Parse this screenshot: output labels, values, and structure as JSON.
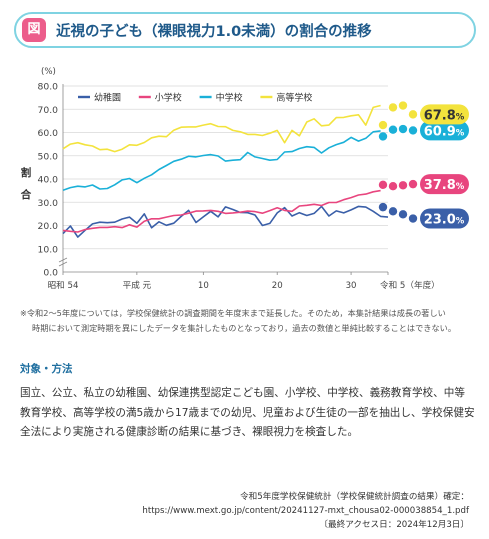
{
  "header": {
    "badge": "図",
    "title": "近視の子ども（裸眼視力1.0未満）の割合の推移"
  },
  "chart_data": {
    "type": "line",
    "unit_label": "(%)",
    "ylabel": "割合",
    "ylim": [
      0,
      80
    ],
    "yticks": [
      "0.0",
      "10.0",
      "20.0",
      "30.0",
      "40.0",
      "50.0",
      "60.0",
      "70.0",
      "80.0"
    ],
    "x_start_year": 1979,
    "x_end_year": 2023,
    "xticks": [
      {
        "year": 1979,
        "label": "昭和 54"
      },
      {
        "year": 1989,
        "label": "平成 元"
      },
      {
        "year": 1998,
        "label": "10"
      },
      {
        "year": 2008,
        "label": "20"
      },
      {
        "year": 2018,
        "label": "30"
      },
      {
        "year": 2023,
        "label": "令和 5（年度）"
      }
    ],
    "colors": {
      "幼稚園": "#3a5fa8",
      "小学校": "#e8457e",
      "中学校": "#1ab0d8",
      "高等学校": "#f3e33d"
    },
    "series": [
      {
        "name": "幼稚園",
        "values": [
          16.5,
          19.8,
          15.0,
          18.0,
          20.7,
          21.4,
          21.2,
          21.4,
          22.8,
          23.6,
          21.0,
          25.0,
          19.0,
          21.6,
          20.1,
          21.0,
          23.9,
          26.5,
          21.3,
          23.7,
          26.1,
          23.7,
          28.0,
          26.9,
          25.6,
          25.5,
          24.5,
          20.0,
          20.9,
          25.4,
          27.7,
          24.1,
          25.5,
          24.3,
          25.2,
          28.2,
          24.1,
          26.3,
          25.4,
          26.7,
          28.2,
          27.9,
          26.1,
          23.9,
          23.6
        ],
        "end_values": [
          27.9,
          26.1,
          24.8,
          23.0
        ],
        "end_label": "23.0"
      },
      {
        "name": "小学校",
        "values": [
          17.9,
          17.5,
          17.2,
          18.3,
          18.8,
          19.2,
          19.2,
          19.5,
          19.1,
          20.3,
          19.3,
          21.8,
          22.9,
          22.9,
          23.6,
          24.3,
          24.5,
          25.3,
          26.2,
          26.3,
          26.5,
          26.1,
          25.2,
          25.4,
          25.7,
          26.2,
          26.0,
          25.3,
          26.4,
          27.6,
          26.5,
          26.1,
          28.4,
          28.7,
          29.1,
          28.6,
          29.9,
          29.9,
          31.1,
          32.0,
          33.1,
          33.5,
          34.5,
          35.0
        ],
        "end_values": [
          37.5,
          36.9,
          37.3,
          37.8
        ],
        "end_label": "37.8"
      },
      {
        "name": "中学校",
        "values": [
          35.2,
          36.3,
          36.9,
          36.6,
          37.4,
          35.7,
          35.9,
          37.5,
          39.6,
          40.2,
          38.4,
          40.3,
          41.8,
          44.1,
          45.8,
          47.6,
          48.5,
          49.8,
          49.5,
          50.1,
          50.5,
          49.9,
          47.7,
          48.1,
          48.3,
          51.4,
          49.5,
          48.8,
          48.1,
          48.4,
          51.6,
          51.8,
          53.1,
          53.9,
          53.6,
          51.2,
          53.4,
          54.8,
          55.8,
          57.9,
          56.3,
          57.5,
          60.3,
          60.7
        ],
        "end_values": [
          58.3,
          61.2,
          61.5,
          60.9
        ],
        "end_label": "60.9"
      },
      {
        "name": "高等学校",
        "values": [
          53.0,
          55.0,
          55.6,
          54.7,
          54.2,
          52.6,
          52.8,
          51.8,
          52.8,
          54.7,
          54.5,
          55.7,
          57.7,
          58.4,
          58.2,
          61.0,
          62.3,
          62.4,
          62.4,
          63.2,
          63.8,
          62.6,
          62.5,
          60.9,
          60.3,
          59.2,
          59.2,
          58.7,
          59.7,
          60.9,
          55.6,
          60.9,
          58.6,
          64.5,
          65.9,
          62.9,
          63.2,
          66.4,
          66.5,
          67.2,
          67.6,
          63.2,
          70.8,
          71.6
        ],
        "end_values": [
          63.2,
          70.8,
          71.6,
          67.8
        ],
        "end_label": "67.8"
      }
    ],
    "pct_sign": "%"
  },
  "note": {
    "line1": "※令和2～5年度については，学校保健統計の調査期間を年度末まで延長した。そのため，本集計結果は成長の著しい",
    "line2": "時期において測定時期を異にしたデータを集計したものとなっており，過去の数値と単純比較することはできない。"
  },
  "method": {
    "heading": "対象・方法",
    "body": "国立、公立、私立の幼稚園、幼保連携型認定こども園、小学校、中学校、義務教育学校、中等教育学校、高等学校の満5歳から17歳までの幼児、児童および生徒の一部を抽出し、学校保健安全法により実施される健康診断の結果に基づき、裸眼視力を検査した。"
  },
  "source": {
    "line1": "令和5年度学校保健統計（学校保健統計調査の結果）確定：",
    "line2": "https://www.mext.go.jp/content/20241127-mxt_chousa02-000038854_1.pdf",
    "line3": "〔最終アクセス日：2024年12月3日〕"
  }
}
